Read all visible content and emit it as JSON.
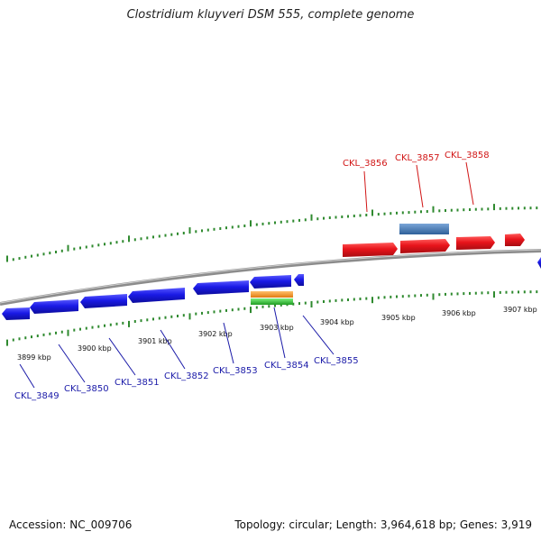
{
  "title": "Clostridium kluyveri DSM 555, complete genome",
  "footer": {
    "accession": "Accession: NC_009706",
    "summary": "Topology: circular; Length: 3,964,618 bp; Genes: 3,919"
  },
  "colors": {
    "forward_gene": "#e8141b",
    "reverse_gene": "#1a1ae6",
    "forward_label": "#d11616",
    "reverse_label": "#1a1aa8",
    "backbone": "#8c8c8c",
    "tick": "#2f8a2f",
    "feature_blue": "#4a7ec0",
    "feature_orange": "#f2911b",
    "feature_green": "#2ec431"
  },
  "ticks": {
    "labels": [
      "3899 kbp",
      "3900 kbp",
      "3901 kbp",
      "3902 kbp",
      "3903 kbp",
      "3904 kbp",
      "3905 kbp",
      "3906 kbp",
      "3907 kbp"
    ]
  },
  "genes": {
    "forward": [
      "CKL_3856",
      "CKL_3857",
      "CKL_3858"
    ],
    "reverse": [
      "CKL_3849",
      "CKL_3850",
      "CKL_3851",
      "CKL_3852",
      "CKL_3853",
      "CKL_3854",
      "CKL_3855"
    ]
  }
}
